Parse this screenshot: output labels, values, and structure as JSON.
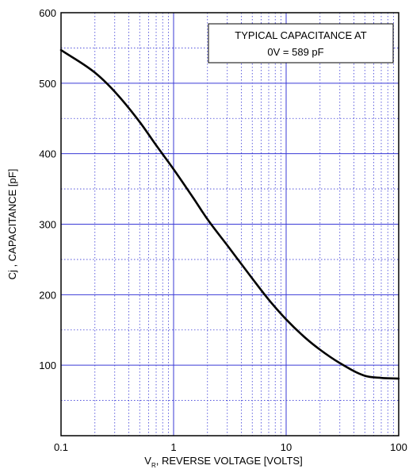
{
  "chart_data": {
    "type": "line",
    "xlabel_main": "V",
    "xlabel_sub": "R",
    "xlabel_rest": ", REVERSE VOLTAGE [VOLTS]",
    "ylabel": "Cj , CAPACITANCE [pF]",
    "annotation": {
      "line1": "TYPICAL CAPACITANCE AT",
      "line2": "0V = 589 pF"
    },
    "x_scale": "log",
    "xlim": [
      0.1,
      100
    ],
    "ylim": [
      0,
      600
    ],
    "x_ticks": [
      {
        "value": 0.1,
        "label": "0.1"
      },
      {
        "value": 1,
        "label": "1"
      },
      {
        "value": 10,
        "label": "10"
      },
      {
        "value": 100,
        "label": "100"
      }
    ],
    "y_ticks": [
      {
        "value": 100,
        "label": "100"
      },
      {
        "value": 200,
        "label": "200"
      },
      {
        "value": 300,
        "label": "300"
      },
      {
        "value": 400,
        "label": "400"
      },
      {
        "value": 500,
        "label": "500"
      },
      {
        "value": 600,
        "label": "600"
      }
    ],
    "y_minor_step": 50,
    "grid": true,
    "colors": {
      "grid": "#3a3ad6",
      "curve": "#000000",
      "axes": "#000000"
    },
    "series": [
      {
        "x": [
          0.1,
          0.2,
          0.3,
          0.5,
          0.7,
          1,
          1.5,
          2,
          3,
          5,
          7,
          10,
          15,
          20,
          30,
          50,
          70,
          100
        ],
        "values": [
          547,
          515,
          488,
          445,
          412,
          378,
          337,
          307,
          270,
          223,
          193,
          165,
          138,
          122,
          103,
          85,
          82,
          81
        ]
      }
    ]
  }
}
